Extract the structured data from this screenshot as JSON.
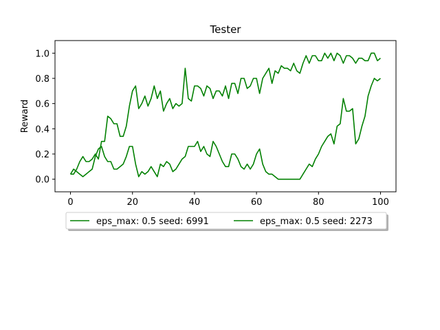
{
  "chart_data": {
    "type": "line",
    "title": "Tester",
    "xlabel": "",
    "ylabel": "Reward",
    "xlim": [
      -5,
      105
    ],
    "ylim": [
      -0.1,
      1.1
    ],
    "xticks": [
      0,
      20,
      40,
      60,
      80,
      100
    ],
    "yticks": [
      0.0,
      0.2,
      0.4,
      0.6,
      0.8,
      1.0
    ],
    "xtick_labels": [
      "0",
      "20",
      "40",
      "60",
      "80",
      "100"
    ],
    "ytick_labels": [
      "0.0",
      "0.2",
      "0.4",
      "0.6",
      "0.8",
      "1.0"
    ],
    "grid": false,
    "legend_position": "below",
    "series_color": "#008000",
    "series": [
      {
        "name": "eps_max: 0.5 seed: 6991",
        "values": [
          0.04,
          0.04,
          0.08,
          0.14,
          0.18,
          0.14,
          0.14,
          0.16,
          0.2,
          0.16,
          0.3,
          0.3,
          0.5,
          0.48,
          0.44,
          0.44,
          0.34,
          0.34,
          0.42,
          0.58,
          0.7,
          0.74,
          0.56,
          0.6,
          0.66,
          0.58,
          0.64,
          0.74,
          0.64,
          0.7,
          0.54,
          0.6,
          0.64,
          0.56,
          0.6,
          0.58,
          0.6,
          0.88,
          0.64,
          0.62,
          0.74,
          0.74,
          0.72,
          0.66,
          0.74,
          0.72,
          0.64,
          0.7,
          0.7,
          0.66,
          0.74,
          0.64,
          0.76,
          0.76,
          0.68,
          0.8,
          0.8,
          0.72,
          0.74,
          0.8,
          0.8,
          0.68,
          0.8,
          0.84,
          0.88,
          0.76,
          0.86,
          0.84,
          0.9,
          0.88,
          0.88,
          0.86,
          0.92,
          0.86,
          0.84,
          0.92,
          0.98,
          0.92,
          0.98,
          0.98,
          0.94,
          0.94,
          1.0,
          0.96,
          1.0,
          0.94,
          1.0,
          0.98,
          0.92,
          0.98,
          0.98,
          0.96,
          0.92,
          0.96,
          0.96,
          0.94,
          0.94,
          1.0,
          1.0,
          0.94,
          0.96
        ]
      },
      {
        "name": "eps_max: 0.5 seed: 2273",
        "values": [
          0.04,
          0.08,
          0.06,
          0.04,
          0.02,
          0.04,
          0.06,
          0.08,
          0.18,
          0.24,
          0.26,
          0.18,
          0.14,
          0.14,
          0.08,
          0.08,
          0.1,
          0.12,
          0.18,
          0.26,
          0.26,
          0.12,
          0.02,
          0.06,
          0.04,
          0.06,
          0.1,
          0.06,
          0.02,
          0.12,
          0.1,
          0.14,
          0.12,
          0.06,
          0.08,
          0.12,
          0.16,
          0.18,
          0.26,
          0.26,
          0.26,
          0.3,
          0.22,
          0.26,
          0.2,
          0.18,
          0.3,
          0.26,
          0.2,
          0.14,
          0.1,
          0.1,
          0.2,
          0.2,
          0.16,
          0.1,
          0.08,
          0.12,
          0.08,
          0.12,
          0.2,
          0.24,
          0.12,
          0.06,
          0.04,
          0.04,
          0.02,
          0.0,
          0.0,
          0.0,
          0.0,
          0.0,
          0.0,
          0.0,
          0.0,
          0.04,
          0.08,
          0.12,
          0.1,
          0.16,
          0.2,
          0.26,
          0.3,
          0.34,
          0.36,
          0.28,
          0.42,
          0.44,
          0.64,
          0.54,
          0.54,
          0.56,
          0.28,
          0.32,
          0.42,
          0.5,
          0.66,
          0.74,
          0.8,
          0.78,
          0.8
        ]
      }
    ]
  }
}
